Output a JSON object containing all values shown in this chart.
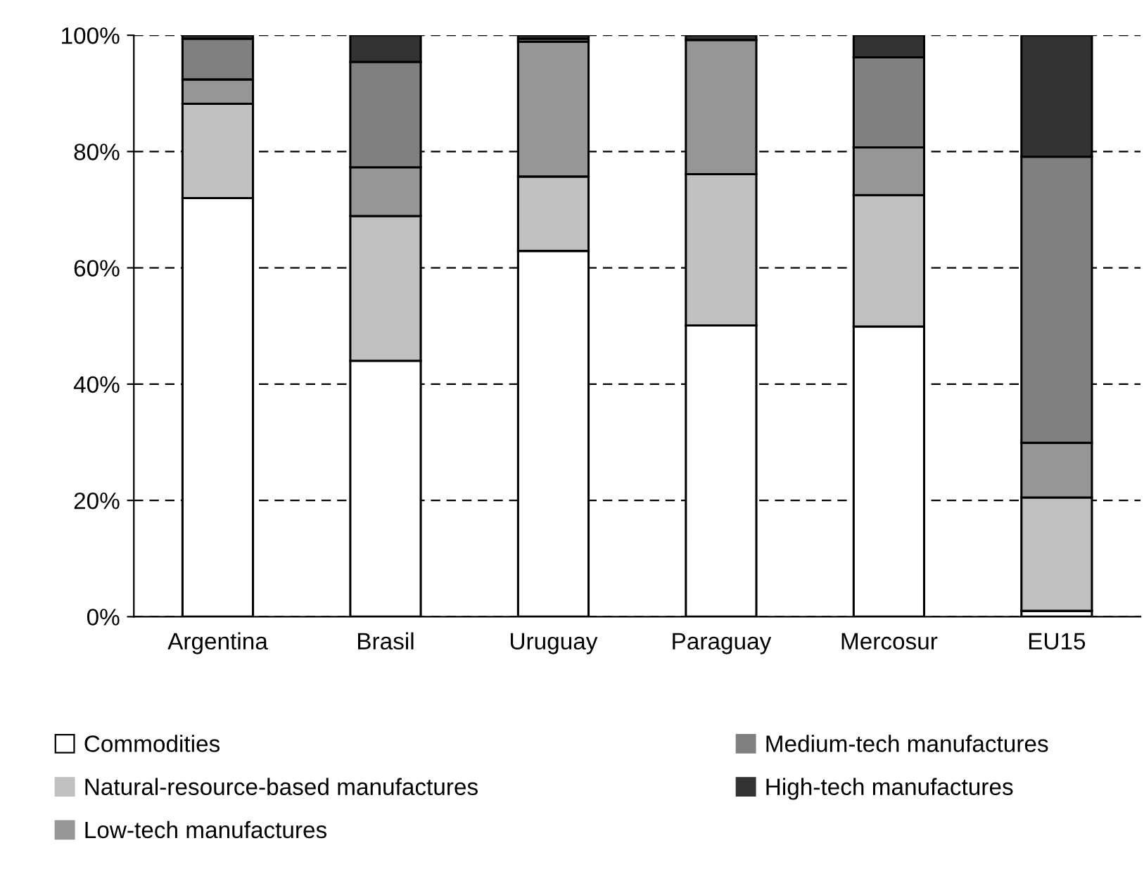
{
  "chart_data": {
    "type": "bar",
    "stacked": true,
    "categories": [
      "Argentina",
      "Brasil",
      "Uruguay",
      "Paraguay",
      "Mercosur",
      "EU15"
    ],
    "series": [
      {
        "name": "Commodities",
        "color": "#ffffff",
        "values": [
          72.0,
          44.0,
          62.9,
          50.1,
          49.9,
          1.0
        ]
      },
      {
        "name": "Natural-resource-based manufactures",
        "color": "#c0c0c0",
        "values": [
          16.2,
          24.9,
          12.8,
          26.0,
          22.6,
          19.5
        ]
      },
      {
        "name": "Low-tech manufactures",
        "color": "#969696",
        "values": [
          4.2,
          8.4,
          23.2,
          23.1,
          8.2,
          9.4
        ]
      },
      {
        "name": "Medium-tech manufactures",
        "color": "#808080",
        "values": [
          7.0,
          18.1,
          0.5,
          0.0,
          15.5,
          49.2
        ]
      },
      {
        "name": "High-tech manufactures",
        "color": "#333333",
        "values": [
          0.6,
          4.6,
          0.6,
          0.8,
          3.8,
          20.9
        ]
      }
    ],
    "ylim": [
      0,
      100
    ],
    "yticks": [
      {
        "value": 0,
        "label": "0%"
      },
      {
        "value": 20,
        "label": "20%"
      },
      {
        "value": 40,
        "label": "40%"
      },
      {
        "value": 60,
        "label": "60%"
      },
      {
        "value": 80,
        "label": "80%"
      },
      {
        "value": 100,
        "label": "100%"
      }
    ],
    "grid": "y",
    "legend": "bottom"
  }
}
